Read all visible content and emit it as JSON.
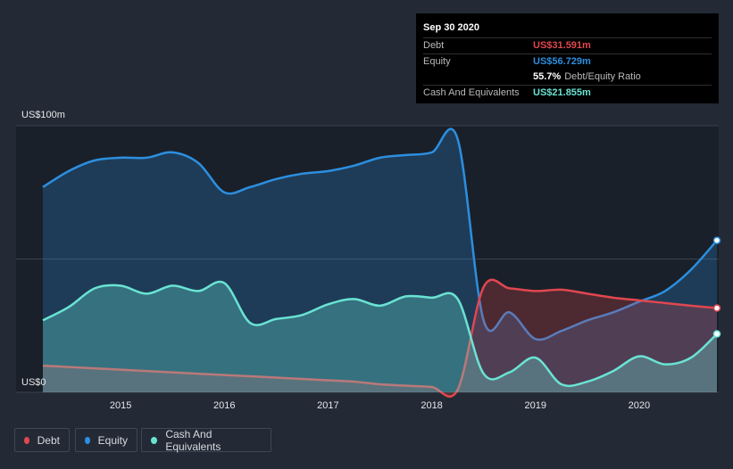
{
  "colors": {
    "debt": "#e0474f",
    "equity": "#2c8fe0",
    "cash": "#6ae3d3",
    "plot_bg": "#1a2029",
    "page_bg": "#232a35",
    "grid": "#3b434f"
  },
  "tooltip": {
    "date": "Sep 30 2020",
    "debt_label": "Debt",
    "debt_value": "US$31.591m",
    "equity_label": "Equity",
    "equity_value": "US$56.729m",
    "ratio_value": "55.7%",
    "ratio_label": "Debt/Equity Ratio",
    "cash_label": "Cash And Equivalents",
    "cash_value": "US$21.855m"
  },
  "legend": [
    {
      "key": "debt",
      "label": "Debt",
      "icon": "dot-icon"
    },
    {
      "key": "equity",
      "label": "Equity",
      "icon": "dot-icon"
    },
    {
      "key": "cash",
      "label": "Cash And Equivalents",
      "icon": "dot-icon"
    }
  ],
  "chart_data": {
    "type": "area",
    "y_top_label": "US$100m",
    "y_bottom_label": "US$0",
    "ylim": [
      0,
      100
    ],
    "xlim": [
      2014.25,
      2020.75
    ],
    "x_ticks": [
      2015,
      2016,
      2017,
      2018,
      2019,
      2020
    ],
    "x_tick_labels": [
      "2015",
      "2016",
      "2017",
      "2018",
      "2019",
      "2020"
    ],
    "grid": "horizontal lines at 0, 50, 100",
    "legend_position": "bottom-left",
    "series": [
      {
        "name": "Equity",
        "key": "equity",
        "x": [
          2014.25,
          2014.5,
          2014.75,
          2015.0,
          2015.25,
          2015.5,
          2015.75,
          2016.0,
          2016.25,
          2016.5,
          2016.75,
          2017.0,
          2017.25,
          2017.5,
          2017.75,
          2018.0,
          2018.25,
          2018.5,
          2018.75,
          2019.0,
          2019.25,
          2019.5,
          2019.75,
          2020.0,
          2020.25,
          2020.5,
          2020.75
        ],
        "y": [
          77,
          83,
          87,
          88,
          88,
          90,
          86,
          75,
          77,
          80,
          82,
          83,
          85,
          88,
          89,
          90,
          95,
          27,
          30,
          20,
          23,
          27,
          30,
          34,
          38,
          46,
          57
        ]
      },
      {
        "name": "Debt",
        "key": "debt",
        "x": [
          2014.25,
          2014.5,
          2014.75,
          2015.0,
          2015.25,
          2015.5,
          2015.75,
          2016.0,
          2016.25,
          2016.5,
          2016.75,
          2017.0,
          2017.25,
          2017.5,
          2017.75,
          2018.0,
          2018.25,
          2018.5,
          2018.75,
          2019.0,
          2019.25,
          2019.5,
          2019.75,
          2020.0,
          2020.25,
          2020.5,
          2020.75
        ],
        "y": [
          10,
          9.5,
          9,
          8.5,
          8,
          7.5,
          7,
          6.5,
          6,
          5.5,
          5,
          4.5,
          4,
          3,
          2.5,
          2,
          1,
          39.5,
          39,
          38,
          38.5,
          37,
          35.5,
          34.5,
          33.5,
          32.5,
          31.6
        ]
      },
      {
        "name": "Cash And Equivalents",
        "key": "cash",
        "x": [
          2014.25,
          2014.5,
          2014.75,
          2015.0,
          2015.25,
          2015.5,
          2015.75,
          2016.0,
          2016.25,
          2016.5,
          2016.75,
          2017.0,
          2017.25,
          2017.5,
          2017.75,
          2018.0,
          2018.25,
          2018.5,
          2018.75,
          2019.0,
          2019.25,
          2019.5,
          2019.75,
          2020.0,
          2020.25,
          2020.5,
          2020.75
        ],
        "y": [
          27,
          32,
          39,
          40,
          37,
          40,
          38,
          41,
          26,
          27.5,
          29,
          33,
          35,
          32.5,
          36,
          35.5,
          35,
          7,
          7.5,
          13,
          3,
          4,
          8,
          13.5,
          10.5,
          13,
          21.9
        ]
      }
    ]
  }
}
